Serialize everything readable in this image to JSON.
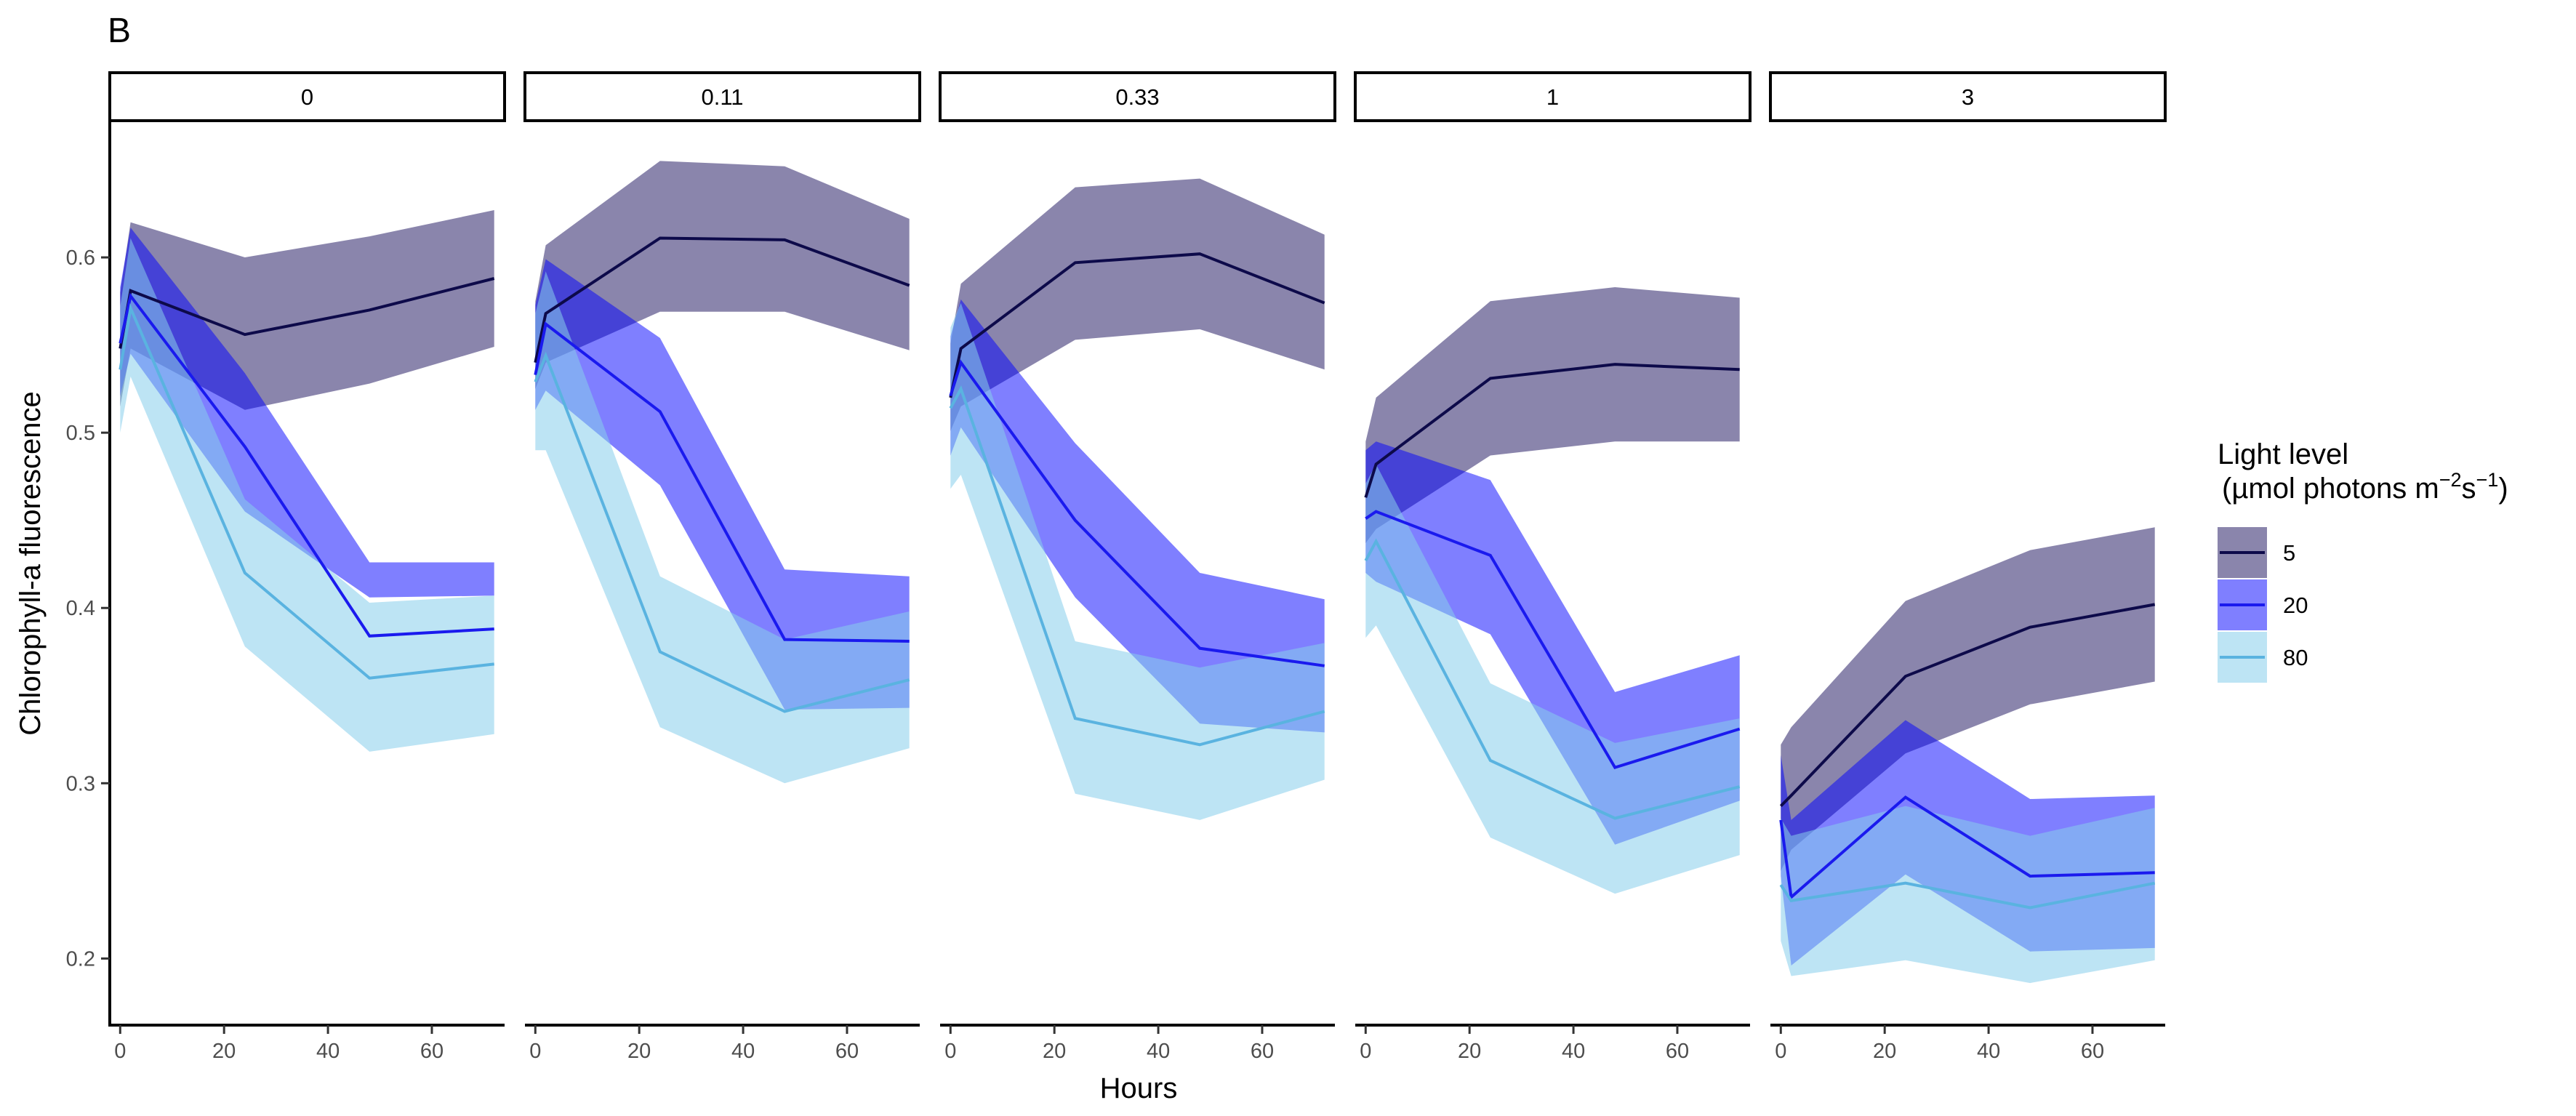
{
  "chart_data": {
    "type": "line",
    "panel_letter": "B",
    "xlabel": "Hours",
    "ylabel": "Chlorophyll-a fluorescence",
    "xlim": [
      -2,
      74
    ],
    "ylim": [
      0.162,
      0.678
    ],
    "x_ticks": [
      0,
      20,
      40,
      60
    ],
    "y_ticks": [
      0.2,
      0.3,
      0.4,
      0.5,
      0.6
    ],
    "grid": false,
    "legend": {
      "title_line1": "Light level",
      "title_line2_prefix": "(µmol photons m",
      "title_line2_exp1": "−2",
      "title_line2_mid": "s",
      "title_line2_exp2": "−1",
      "title_line2_suffix": ")",
      "placement": "right",
      "entries": [
        {
          "label": "5",
          "line_color": "#0d0a4a",
          "fill_color": "#1e1560",
          "fill_opacity": 0.52
        },
        {
          "label": "20",
          "line_color": "#1a1aee",
          "fill_color": "#0000ff",
          "fill_opacity": 0.5
        },
        {
          "label": "80",
          "line_color": "#5ab3e0",
          "fill_color": "#87ceeb",
          "fill_opacity": 0.55
        }
      ]
    },
    "x": [
      0,
      2,
      24,
      48,
      72
    ],
    "panels": [
      {
        "label": "0",
        "series": [
          {
            "name": "5",
            "y": [
              0.548,
              0.581,
              0.556,
              0.57,
              0.588
            ],
            "lower": [
              0.515,
              0.548,
              0.513,
              0.528,
              0.549
            ],
            "upper": [
              0.58,
              0.62,
              0.6,
              0.612,
              0.627
            ]
          },
          {
            "name": "20",
            "y": [
              0.551,
              0.578,
              0.492,
              0.384,
              0.388
            ],
            "lower": [
              0.521,
              0.545,
              0.455,
              0.406,
              0.407
            ],
            "upper": [
              0.583,
              0.617,
              0.534,
              0.426,
              0.426
            ]
          },
          {
            "name": "80",
            "y": [
              0.536,
              0.571,
              0.42,
              0.36,
              0.368
            ],
            "lower": [
              0.5,
              0.532,
              0.378,
              0.318,
              0.328
            ],
            "upper": [
              0.572,
              0.611,
              0.462,
              0.403,
              0.407
            ]
          }
        ]
      },
      {
        "label": "0.11",
        "series": [
          {
            "name": "5",
            "y": [
              0.54,
              0.568,
              0.611,
              0.61,
              0.584
            ],
            "lower": [
              0.525,
              0.54,
              0.569,
              0.569,
              0.547
            ],
            "upper": [
              0.575,
              0.607,
              0.655,
              0.652,
              0.622
            ]
          },
          {
            "name": "20",
            "y": [
              0.533,
              0.562,
              0.512,
              0.382,
              0.381
            ],
            "lower": [
              0.513,
              0.524,
              0.47,
              0.342,
              0.343
            ],
            "upper": [
              0.573,
              0.599,
              0.554,
              0.422,
              0.418
            ]
          },
          {
            "name": "80",
            "y": [
              0.529,
              0.544,
              0.375,
              0.341,
              0.359
            ],
            "lower": [
              0.49,
              0.49,
              0.332,
              0.3,
              0.32
            ],
            "upper": [
              0.568,
              0.592,
              0.418,
              0.382,
              0.398
            ]
          }
        ]
      },
      {
        "label": "0.33",
        "series": [
          {
            "name": "5",
            "y": [
              0.52,
              0.548,
              0.597,
              0.602,
              0.574
            ],
            "lower": [
              0.501,
              0.515,
              0.553,
              0.559,
              0.536
            ],
            "upper": [
              0.551,
              0.585,
              0.64,
              0.645,
              0.613
            ]
          },
          {
            "name": "20",
            "y": [
              0.521,
              0.54,
              0.45,
              0.377,
              0.367
            ],
            "lower": [
              0.487,
              0.503,
              0.406,
              0.334,
              0.329
            ],
            "upper": [
              0.555,
              0.576,
              0.494,
              0.42,
              0.405
            ]
          },
          {
            "name": "80",
            "y": [
              0.514,
              0.525,
              0.337,
              0.322,
              0.341
            ],
            "lower": [
              0.468,
              0.476,
              0.294,
              0.279,
              0.302
            ],
            "upper": [
              0.56,
              0.574,
              0.381,
              0.366,
              0.38
            ]
          }
        ]
      },
      {
        "label": "1",
        "series": [
          {
            "name": "5",
            "y": [
              0.463,
              0.482,
              0.531,
              0.539,
              0.536
            ],
            "lower": [
              0.437,
              0.445,
              0.487,
              0.495,
              0.495
            ],
            "upper": [
              0.495,
              0.52,
              0.575,
              0.583,
              0.577
            ]
          },
          {
            "name": "20",
            "y": [
              0.451,
              0.455,
              0.43,
              0.309,
              0.331
            ],
            "lower": [
              0.42,
              0.415,
              0.385,
              0.265,
              0.29
            ],
            "upper": [
              0.49,
              0.495,
              0.473,
              0.352,
              0.373
            ]
          },
          {
            "name": "80",
            "y": [
              0.427,
              0.438,
              0.313,
              0.28,
              0.298
            ],
            "lower": [
              0.383,
              0.39,
              0.269,
              0.237,
              0.259
            ],
            "upper": [
              0.471,
              0.482,
              0.357,
              0.323,
              0.337
            ]
          }
        ]
      },
      {
        "label": "3",
        "series": [
          {
            "name": "5",
            "y": [
              0.287,
              0.293,
              0.361,
              0.389,
              0.402
            ],
            "lower": [
              0.25,
              0.262,
              0.317,
              0.345,
              0.358
            ],
            "upper": [
              0.322,
              0.332,
              0.404,
              0.433,
              0.446
            ]
          },
          {
            "name": "20",
            "y": [
              0.279,
              0.235,
              0.292,
              0.247,
              0.249
            ],
            "lower": [
              0.247,
              0.196,
              0.248,
              0.204,
              0.206
            ],
            "upper": [
              0.316,
              0.279,
              0.336,
              0.291,
              0.293
            ]
          },
          {
            "name": "80",
            "y": [
              0.242,
              0.233,
              0.243,
              0.229,
              0.243
            ],
            "lower": [
              0.21,
              0.19,
              0.199,
              0.186,
              0.199
            ],
            "upper": [
              0.28,
              0.27,
              0.287,
              0.27,
              0.286
            ]
          }
        ]
      }
    ]
  }
}
